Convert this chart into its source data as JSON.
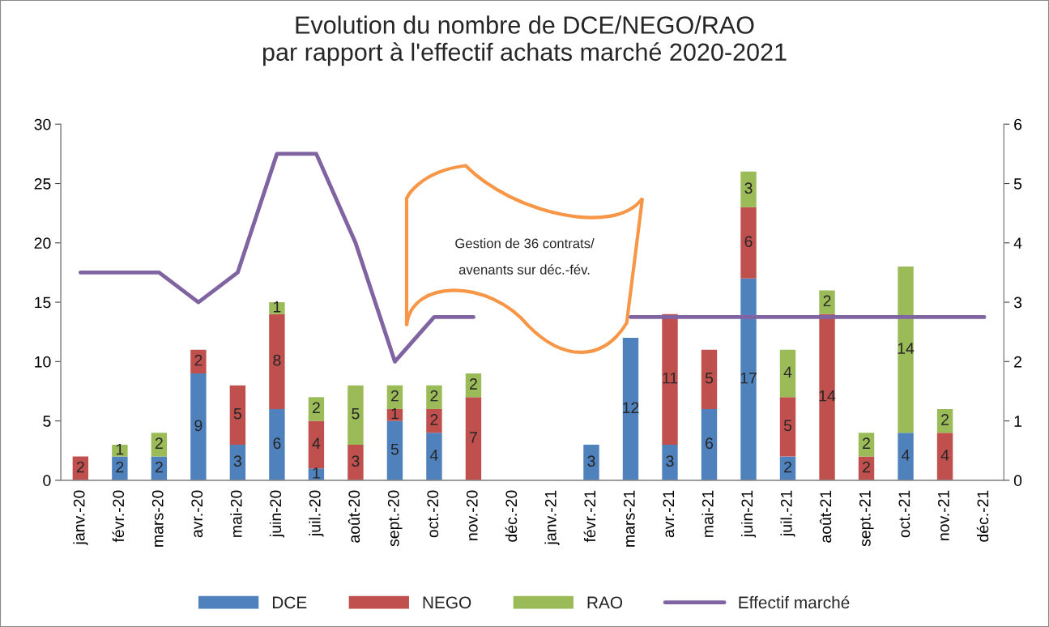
{
  "chart_data": {
    "type": "bar",
    "stacked": true,
    "title": "Evolution du nombre de DCE/NEGO/RAO\npar rapport à l'effectif achats marché 2020-2021",
    "categories": [
      "janv.-20",
      "févr.-20",
      "mars-20",
      "avr.-20",
      "mai-20",
      "juin-20",
      "juil.-20",
      "août-20",
      "sept.-20",
      "oct.-20",
      "nov.-20",
      "déc.-20",
      "janv.-21",
      "févr.-21",
      "mars-21",
      "avr.-21",
      "mai-21",
      "juin-21",
      "juil.-21",
      "août-21",
      "sept.-21",
      "oct.-21",
      "nov.-21",
      "déc.-21"
    ],
    "series": [
      {
        "name": "DCE",
        "color": "#4f81bd",
        "values": [
          0,
          2,
          2,
          9,
          3,
          6,
          1,
          0,
          5,
          4,
          0,
          0,
          0,
          3,
          12,
          3,
          6,
          17,
          2,
          0,
          0,
          4,
          0,
          0
        ],
        "value_labels": [
          null,
          "2",
          "2",
          "9",
          "3",
          "6",
          "1",
          null,
          "5",
          "4",
          null,
          null,
          null,
          "3",
          "12",
          "3",
          "6",
          "17",
          "2",
          null,
          null,
          "4",
          null,
          null
        ]
      },
      {
        "name": "NEGO",
        "color": "#c0504d",
        "values": [
          2,
          0,
          0,
          2,
          5,
          8,
          4,
          3,
          1,
          2,
          7,
          0,
          0,
          0,
          0,
          11,
          5,
          6,
          5,
          14,
          2,
          0,
          4,
          0
        ],
        "value_labels": [
          "2",
          null,
          null,
          "2",
          "5",
          "8",
          "4",
          "3",
          "1",
          "2",
          "7",
          null,
          null,
          null,
          null,
          "11",
          "5",
          "6",
          "5",
          "14",
          "2",
          null,
          "4",
          null
        ]
      },
      {
        "name": "RAO",
        "color": "#9bbb59",
        "values": [
          0,
          1,
          2,
          0,
          0,
          1,
          2,
          5,
          2,
          2,
          2,
          0,
          0,
          0,
          0,
          0,
          0,
          3,
          4,
          2,
          2,
          14,
          2,
          0
        ],
        "value_labels": [
          null,
          "1",
          "2",
          null,
          null,
          "1",
          "2",
          "5",
          "2",
          "2",
          "2",
          null,
          null,
          null,
          null,
          null,
          null,
          "3",
          "4",
          "2",
          "2",
          "14",
          "2",
          null
        ]
      },
      {
        "name": "Effectif marché",
        "type": "line",
        "axis": "y2",
        "color": "#8064a2",
        "values": [
          3.5,
          3.5,
          3.5,
          3,
          3.5,
          5.5,
          5.5,
          4,
          2,
          2.75,
          2.75,
          null,
          null,
          null,
          2.75,
          2.75,
          2.75,
          2.75,
          2.75,
          2.75,
          2.75,
          2.75,
          2.75,
          2.75
        ]
      }
    ],
    "ylim": [
      0,
      30
    ],
    "yticks": [
      0,
      5,
      10,
      15,
      20,
      25,
      30
    ],
    "y2lim": [
      0,
      6
    ],
    "y2ticks": [
      0,
      1,
      2,
      3,
      4,
      5,
      6
    ],
    "grid": false,
    "legend": "bottom",
    "annotations": [
      "Gestion de 36 contrats/\navenants sur déc.-fév."
    ]
  }
}
